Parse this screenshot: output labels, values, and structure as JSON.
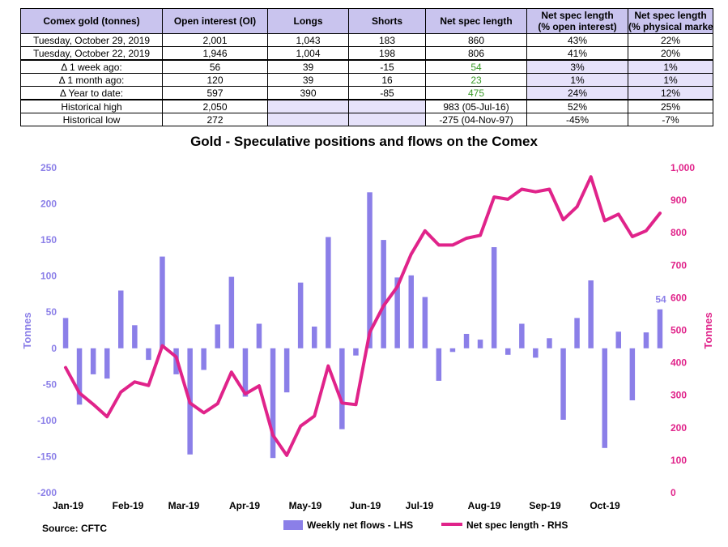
{
  "table": {
    "headers": [
      [
        "Comex gold (tonnes)",
        ""
      ],
      [
        "Open interest (OI)",
        ""
      ],
      [
        "Longs",
        ""
      ],
      [
        "Shorts",
        ""
      ],
      [
        "Net spec length",
        ""
      ],
      [
        "Net spec length",
        "(% open interest)"
      ],
      [
        "Net spec length",
        "(% physical market)"
      ]
    ],
    "rows": [
      [
        "Tuesday, October 29, 2019",
        "2,001",
        "1,043",
        "183",
        "860",
        "43%",
        "22%"
      ],
      [
        "Tuesday, October 22, 2019",
        "1,946",
        "1,004",
        "198",
        "806",
        "41%",
        "20%"
      ],
      [
        "Δ 1 week ago:",
        "56",
        "39",
        "-15",
        "54",
        "3%",
        "1%"
      ],
      [
        "Δ 1 month ago:",
        "120",
        "39",
        "16",
        "23",
        "1%",
        "1%"
      ],
      [
        "Δ Year to date:",
        "597",
        "390",
        "-85",
        "475",
        "24%",
        "12%"
      ],
      [
        "Historical high",
        "2,050",
        "",
        "",
        "983  (05-Jul-16)",
        "52%",
        "25%"
      ],
      [
        "Historical low",
        "272",
        "",
        "",
        "-275  (04-Nov-97)",
        "-45%",
        "-7%"
      ]
    ]
  },
  "colors": {
    "bars": "#8b7fe8",
    "line": "#e0238a",
    "table_header_bg": "#c9c4ee",
    "table_shade_bg": "#e6e2fa",
    "positive_delta": "#3a9a28"
  },
  "chart_data": {
    "type": "bar+line",
    "title": "Gold - Speculative positions and flows on the Comex",
    "x_tick_labels": [
      "Jan-19",
      "Feb-19",
      "Mar-19",
      "Apr-19",
      "May-19",
      "Jun-19",
      "Jul-19",
      "Aug-19",
      "Sep-19",
      "Oct-19"
    ],
    "left_axis": {
      "label": "Tonnes",
      "ylim": [
        -200,
        250
      ],
      "ticks": [
        "-200",
        "-150",
        "-100",
        "-50",
        "0",
        "50",
        "100",
        "150",
        "200",
        "250"
      ]
    },
    "right_axis": {
      "label": "Tonnes",
      "ylim": [
        0,
        1000
      ],
      "ticks": [
        "0",
        "100",
        "200",
        "300",
        "400",
        "500",
        "600",
        "700",
        "800",
        "900",
        "1,000"
      ]
    },
    "grid": false,
    "legend_position": "bottom",
    "series": [
      {
        "name": "Weekly net flows - LHS",
        "type": "bar",
        "axis": "left",
        "values": [
          42,
          -78,
          -36,
          -42,
          80,
          32,
          -16,
          127,
          -36,
          -147,
          -30,
          33,
          99,
          -67,
          34,
          -152,
          -61,
          91,
          30,
          154,
          -112,
          -10,
          216,
          150,
          98,
          101,
          71,
          -45,
          -5,
          20,
          12,
          140,
          -9,
          34,
          -13,
          14,
          -99,
          42,
          94,
          -138,
          23,
          -72,
          22,
          54
        ]
      },
      {
        "name": "Net spec length - RHS",
        "type": "line",
        "axis": "right",
        "values": [
          385,
          307,
          272,
          234,
          310,
          341,
          330,
          452,
          418,
          276,
          246,
          274,
          371,
          304,
          329,
          177,
          115,
          205,
          236,
          390,
          276,
          271,
          493,
          575,
          634,
          734,
          806,
          762,
          762,
          783,
          792,
          910,
          903,
          934,
          926,
          934,
          840,
          880,
          972,
          837,
          857,
          788,
          806,
          860
        ]
      }
    ],
    "data_labels": [
      {
        "series": "Weekly net flows - LHS",
        "index": 43,
        "text": "54"
      }
    ]
  },
  "source": "Source: CFTC"
}
